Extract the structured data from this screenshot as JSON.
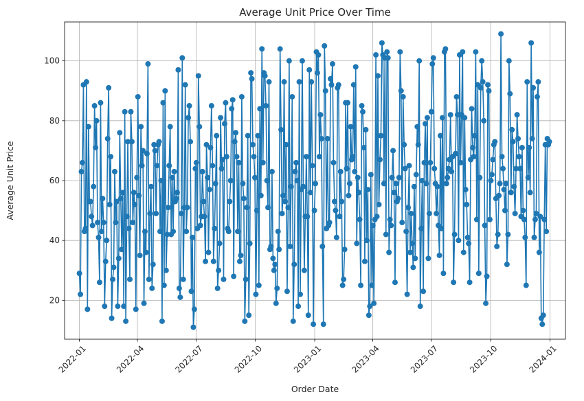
{
  "chart_data": {
    "type": "line",
    "title": "Average Unit Price Over Time",
    "xlabel": "Order Date",
    "ylabel": "Average Unit Price",
    "x_range": [
      "2021-12-09",
      "2024-01-25"
    ],
    "ylim": [
      7,
      113
    ],
    "grid": true,
    "legend": "none",
    "colors": {
      "series": "#1f77b4",
      "grid": "#b0b0b0",
      "axis": "#000000"
    },
    "xticks": [
      "2022-01",
      "2022-04",
      "2022-07",
      "2022-10",
      "2023-01",
      "2023-04",
      "2023-07",
      "2023-10",
      "2024-01"
    ],
    "yticks": [
      "20",
      "40",
      "60",
      "80",
      "100"
    ],
    "series": [
      {
        "marker": "circle",
        "x_start": "2022-01-01",
        "x_end": "2023-12-31",
        "values": [
          29,
          22,
          63,
          66,
          92,
          43,
          44,
          93,
          17,
          78,
          53,
          53,
          48,
          45,
          58,
          85,
          71,
          80,
          46,
          41,
          26,
          86,
          43,
          54,
          46,
          18,
          33,
          40,
          74,
          91,
          52,
          68,
          14,
          27,
          31,
          63,
          46,
          53,
          18,
          34,
          76,
          54,
          37,
          56,
          18,
          83,
          13,
          48,
          73,
          44,
          27,
          83,
          73,
          46,
          56,
          52,
          17,
          61,
          88,
          55,
          35,
          78,
          65,
          70,
          19,
          43,
          36,
          69,
          99,
          27,
          49,
          58,
          24,
          32,
          72,
          70,
          49,
          65,
          72,
          73,
          43,
          60,
          13,
          86,
          25,
          90,
          30,
          42,
          51,
          65,
          78,
          42,
          61,
          43,
          63,
          53,
          54,
          56,
          97,
          24,
          21,
          49,
          101,
          27,
          51,
          92,
          43,
          51,
          81,
          85,
          73,
          23,
          41,
          11,
          17,
          64,
          66,
          44,
          95,
          78,
          45,
          48,
          63,
          53,
          48,
          33,
          72,
          61,
          36,
          57,
          71,
          85,
          65,
          33,
          44,
          59,
          75,
          24,
          30,
          39,
          81,
          64,
          67,
          27,
          79,
          86,
          68,
          44,
          43,
          53,
          60,
          84,
          87,
          28,
          73,
          76,
          68,
          43,
          66,
          33,
          35,
          88,
          59,
          54,
          13,
          27,
          51,
          75,
          15,
          39,
          96,
          94,
          72,
          68,
          61,
          22,
          50,
          75,
          25,
          84,
          55,
          104,
          66,
          96,
          95,
          85,
          60,
          51,
          93,
          37,
          38,
          63,
          34,
          30,
          32,
          19,
          24,
          43,
          37,
          104,
          77,
          49,
          55,
          93,
          53,
          72,
          23,
          51,
          100,
          38,
          58,
          88,
          13,
          32,
          63,
          66,
          60,
          18,
          93,
          22,
          57,
          100,
          58,
          30,
          48,
          68,
          48,
          15,
          97,
          56,
          93,
          65,
          12,
          50,
          59,
          103,
          96,
          102,
          68,
          82,
          74,
          38,
          12,
          105,
          90,
          44,
          74,
          45,
          46,
          94,
          92,
          99,
          66,
          53,
          50,
          41,
          91,
          92,
          48,
          63,
          53,
          25,
          27,
          37,
          86,
          64,
          86,
          55,
          59,
          78,
          67,
          68,
          92,
          63,
          98,
          39,
          61,
          56,
          47,
          25,
          85,
          83,
          71,
          33,
          77,
          40,
          57,
          15,
          18,
          62,
          25,
          45,
          19,
          47,
          102,
          48,
          95,
          52,
          67,
          75,
          106,
          102,
          59,
          101,
          42,
          103,
          101,
          36,
          47,
          45,
          61,
          70,
          56,
          26,
          59,
          53,
          54,
          61,
          103,
          90,
          46,
          88,
          72,
          64,
          43,
          22,
          51,
          65,
          36,
          49,
          39,
          31,
          58,
          34,
          62,
          78,
          72,
          100,
          18,
          44,
          60,
          23,
          66,
          79,
          59,
          81,
          34,
          49,
          66,
          83,
          99,
          101,
          64,
          59,
          49,
          58,
          45,
          35,
          75,
          44,
          81,
          29,
          103,
          104,
          59,
          61,
          64,
          67,
          82,
          63,
          68,
          26,
          42,
          69,
          88,
          82,
          40,
          102,
          66,
          82,
          103,
          36,
          81,
          57,
          52,
          41,
          39,
          26,
          67,
          84,
          71,
          68,
          75,
          103,
          47,
          92,
          29,
          61,
          91,
          100,
          93,
          80,
          45,
          19,
          28,
          92,
          90,
          47,
          60,
          62,
          67,
          72,
          73,
          54,
          38,
          42,
          55,
          59,
          109,
          68,
          64,
          57,
          50,
          59,
          32,
          42,
          100,
          89,
          56,
          77,
          73,
          58,
          49,
          64,
          82,
          74,
          68,
          64,
          48,
          71,
          50,
          47,
          41,
          25,
          93,
          61,
          71,
          56,
          106,
          74,
          91,
          41,
          47,
          49,
          88,
          93,
          36,
          48,
          14,
          12,
          15,
          47,
          72,
          43,
          74,
          72,
          73
        ]
      }
    ]
  }
}
